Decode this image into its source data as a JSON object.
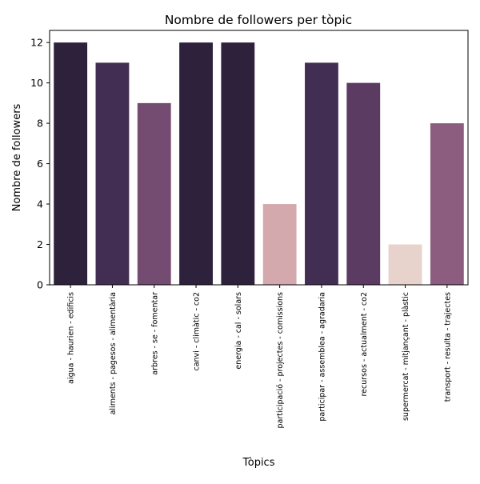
{
  "chart_data": {
    "type": "bar",
    "title": "Nombre de followers per tòpic",
    "xlabel": "Tòpics",
    "ylabel": "Nombre de followers",
    "ylim": [
      0,
      12.6
    ],
    "yticks": [
      0,
      2,
      4,
      6,
      8,
      10,
      12
    ],
    "grid": false,
    "legend": "none",
    "categories": [
      "aigua - haurien - edificis",
      "aliments - pagesos - alimentària",
      "arbres - se - fomentar",
      "canvi - climàtic - co2",
      "energia - cal - solars",
      "participació - projectes - comissions",
      "participar - assemblea - agradaria",
      "recursos - actualment - co2",
      "supermercat - mitjançant - plàstic",
      "transport - resulta - trajectes"
    ],
    "values": [
      12,
      11,
      9,
      12,
      12,
      4,
      11,
      10,
      2,
      8
    ],
    "bar_colors": [
      "#2d213c",
      "#432e53",
      "#744c71",
      "#2d213c",
      "#2d213c",
      "#d4a9ae",
      "#432e53",
      "#5b3b62",
      "#e8d2cc",
      "#8c5d7f"
    ]
  }
}
